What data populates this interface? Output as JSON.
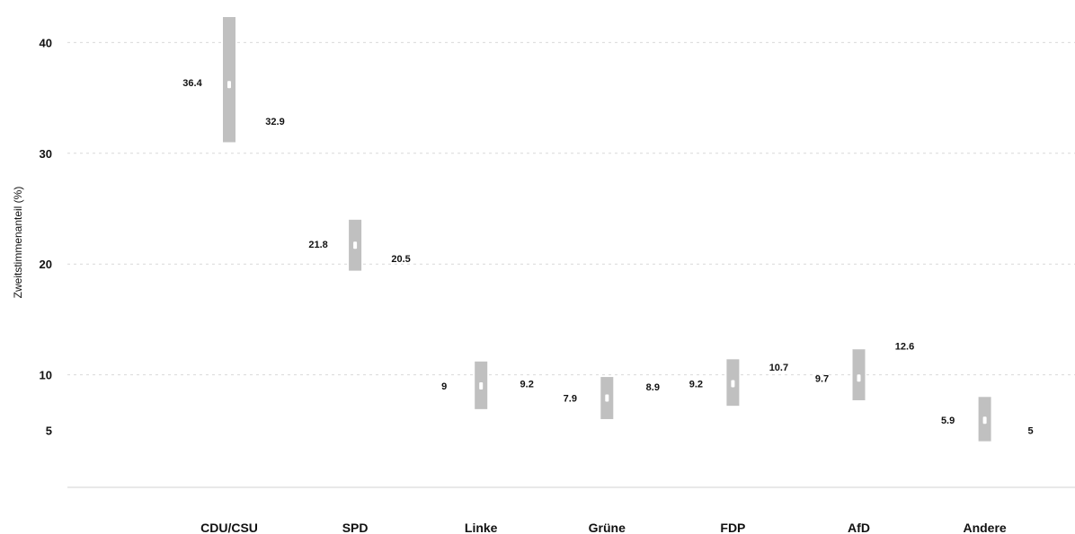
{
  "chart_data": {
    "type": "range",
    "ylabel": "Zweitstimmenanteil (%)",
    "yticks": [
      5,
      10,
      20,
      30,
      40
    ],
    "ylim": [
      0,
      42
    ],
    "grid": true,
    "colors": {
      "bar": "#c0c0c0",
      "marker": "#ffffff",
      "text": "#111111"
    },
    "categories": [
      "CDU/CSU",
      "SPD",
      "Linke",
      "Grüne",
      "FDP",
      "AfD",
      "Andere"
    ],
    "series": [
      {
        "low": 31.0,
        "high": 42.3,
        "mid": 36.2,
        "left_label": "36.4",
        "right_label": "32.9",
        "left_value": 36.4,
        "right_value": 32.9
      },
      {
        "low": 19.4,
        "high": 24.0,
        "mid": 21.7,
        "left_label": "21.8",
        "right_label": "20.5",
        "left_value": 21.8,
        "right_value": 20.5
      },
      {
        "low": 6.9,
        "high": 11.2,
        "mid": 9.0,
        "left_label": "9",
        "right_label": "9.2",
        "left_value": 9.0,
        "right_value": 9.2
      },
      {
        "low": 6.0,
        "high": 9.8,
        "mid": 7.9,
        "left_label": "7.9",
        "right_label": "8.9",
        "left_value": 7.9,
        "right_value": 8.9
      },
      {
        "low": 7.2,
        "high": 11.4,
        "mid": 9.2,
        "left_label": "9.2",
        "right_label": "10.7",
        "left_value": 9.2,
        "right_value": 10.7
      },
      {
        "low": 7.7,
        "high": 12.3,
        "mid": 9.7,
        "left_label": "9.7",
        "right_label": "12.6",
        "left_value": 9.7,
        "right_value": 12.6
      },
      {
        "low": 4.0,
        "high": 8.0,
        "mid": 5.9,
        "left_label": "5.9",
        "right_label": "5",
        "left_value": 5.9,
        "right_value": 5.0
      }
    ]
  }
}
